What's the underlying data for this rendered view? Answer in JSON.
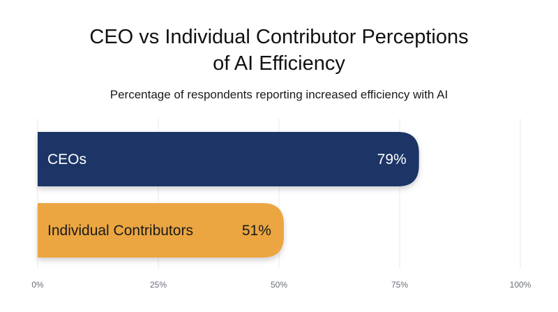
{
  "chart_data": {
    "type": "bar",
    "orientation": "horizontal",
    "title": "CEO vs Individual Contributor Perceptions of AI Efficiency",
    "title_lines": [
      "CEO vs Individual Contributor Perceptions",
      "of AI Efficiency"
    ],
    "subtitle": "Percentage of respondents reporting increased efficiency with AI",
    "categories": [
      "CEOs",
      "Individual Contributors"
    ],
    "values": [
      79,
      51
    ],
    "value_labels": [
      "79%",
      "51%"
    ],
    "colors": [
      "#1e3466",
      "#eba642"
    ],
    "label_colors": [
      "#ffffff",
      "#1a1a1a"
    ],
    "xlim": [
      0,
      100
    ],
    "ticks": [
      0,
      25,
      50,
      75,
      100
    ],
    "tick_labels": [
      "0%",
      "25%",
      "50%",
      "75%",
      "100%"
    ],
    "grid": true,
    "legend": "none"
  }
}
